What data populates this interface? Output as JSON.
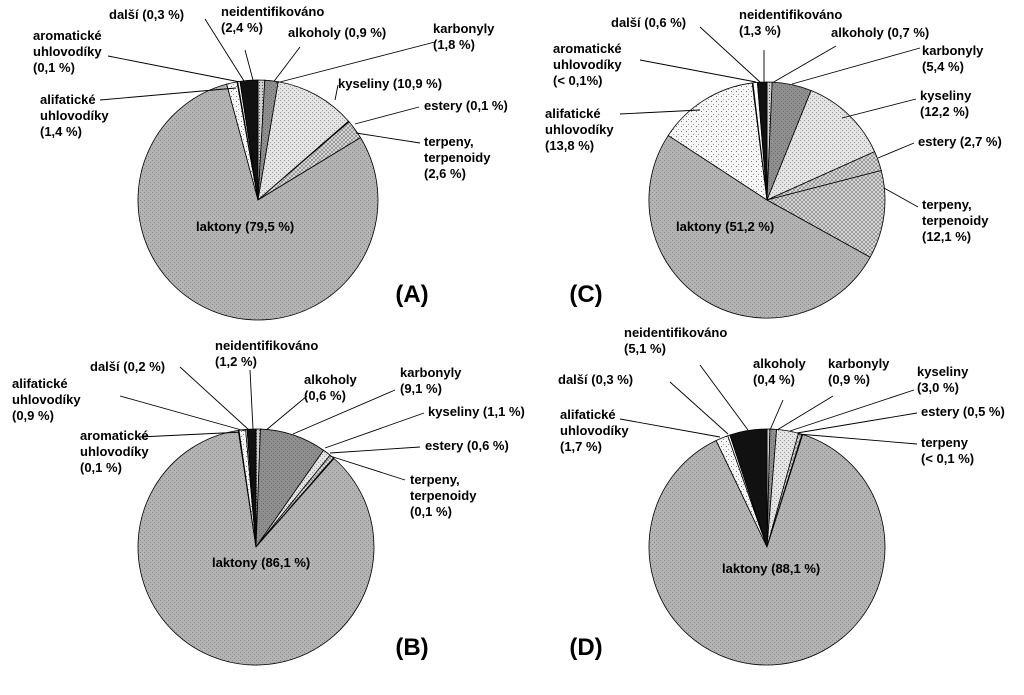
{
  "chart_data": [
    {
      "type": "pie",
      "panel": "(A)",
      "slices": [
        {
          "name": "alkoholy",
          "value": 0.9,
          "label": [
            "alkoholy (0,9 %)"
          ],
          "fill": "dots"
        },
        {
          "name": "karbonyly",
          "value": 1.8,
          "label": [
            "karbonyly",
            "(1,8 %)"
          ],
          "fill": "gray"
        },
        {
          "name": "kyseliny",
          "value": 10.9,
          "label": [
            "kyseliny (10,9 %)"
          ],
          "fill": "light"
        },
        {
          "name": "estery",
          "value": 0.1,
          "label": [
            "estery (0,1 %)"
          ],
          "fill": "cross"
        },
        {
          "name": "terpeny, terpenoidy",
          "value": 2.6,
          "label": [
            "terpeny,",
            "terpenoidy",
            "(2,6 %)"
          ],
          "fill": "cross"
        },
        {
          "name": "laktony",
          "value": 79.5,
          "label": [
            "laktony (79,5 %)"
          ],
          "fill": "lakton"
        },
        {
          "name": "alifatické uhlovodíky",
          "value": 1.4,
          "label": [
            "alifatické",
            "uhlovodíky",
            "(1,4 %)"
          ],
          "fill": "sparse"
        },
        {
          "name": "aromatické uhlovodíky",
          "value": 0.1,
          "label": [
            "aromatické",
            "uhlovodíky",
            "(0,1 %)"
          ],
          "fill": "gray"
        },
        {
          "name": "další",
          "value": 0.3,
          "label": [
            "další (0,3 %)"
          ],
          "fill": "white"
        },
        {
          "name": "neidentifikováno",
          "value": 2.4,
          "label": [
            "neidentifikováno",
            "(2,4 %)"
          ],
          "fill": "black"
        }
      ]
    },
    {
      "type": "pie",
      "panel": "(B)",
      "slices": [
        {
          "name": "alkoholy",
          "value": 0.6,
          "label": [
            "alkoholy",
            "(0,6 %)"
          ],
          "fill": "dots"
        },
        {
          "name": "karbonyly",
          "value": 9.1,
          "label": [
            "karbonyly",
            "(9,1 %)"
          ],
          "fill": "gray"
        },
        {
          "name": "kyseliny",
          "value": 1.1,
          "label": [
            "kyseliny (1,1 %)"
          ],
          "fill": "light"
        },
        {
          "name": "estery",
          "value": 0.6,
          "label": [
            "estery (0,6 %)"
          ],
          "fill": "cross"
        },
        {
          "name": "terpeny, terpenoidy",
          "value": 0.1,
          "label": [
            "terpeny,",
            "terpenoidy",
            "(0,1 %)"
          ],
          "fill": "cross"
        },
        {
          "name": "laktony",
          "value": 86.1,
          "label": [
            "laktony (86,1 %)"
          ],
          "fill": "lakton"
        },
        {
          "name": "aromatické uhlovodíky",
          "value": 0.1,
          "label": [
            "aromatické",
            "uhlovodíky",
            "(0,1 %)"
          ],
          "fill": "gray"
        },
        {
          "name": "alifatické uhlovodíky",
          "value": 0.9,
          "label": [
            "alifatické",
            "uhlovodíky",
            "(0,9 %)"
          ],
          "fill": "sparse"
        },
        {
          "name": "další",
          "value": 0.2,
          "label": [
            "další (0,2 %)"
          ],
          "fill": "white"
        },
        {
          "name": "neidentifikováno",
          "value": 1.2,
          "label": [
            "neidentifikováno",
            "(1,2 %)"
          ],
          "fill": "black"
        }
      ]
    },
    {
      "type": "pie",
      "panel": "(C)",
      "slices": [
        {
          "name": "alkoholy",
          "value": 0.7,
          "label": [
            "alkoholy (0,7 %)"
          ],
          "fill": "dots"
        },
        {
          "name": "karbonyly",
          "value": 5.4,
          "label": [
            "karbonyly",
            "(5,4 %)"
          ],
          "fill": "gray"
        },
        {
          "name": "kyseliny",
          "value": 12.2,
          "label": [
            "kyseliny",
            "(12,2 %)"
          ],
          "fill": "light"
        },
        {
          "name": "estery",
          "value": 2.7,
          "label": [
            "estery (2,7 %)"
          ],
          "fill": "cross"
        },
        {
          "name": "terpeny, terpenoidy",
          "value": 12.1,
          "label": [
            "terpeny,",
            "terpenoidy",
            "(12,1 %)"
          ],
          "fill": "cross"
        },
        {
          "name": "laktony",
          "value": 51.2,
          "label": [
            "laktony (51,2 %)"
          ],
          "fill": "lakton"
        },
        {
          "name": "alifatické uhlovodíky",
          "value": 13.8,
          "label": [
            "alifatické",
            "uhlovodíky",
            "(13,8 %)"
          ],
          "fill": "sparse"
        },
        {
          "name": "aromatické uhlovodíky",
          "value": 0.1,
          "label": [
            "aromatické",
            "uhlovodíky",
            "(< 0,1%)"
          ],
          "fill": "gray"
        },
        {
          "name": "další",
          "value": 0.6,
          "label": [
            "další (0,6 %)"
          ],
          "fill": "white"
        },
        {
          "name": "neidentifikováno",
          "value": 1.3,
          "label": [
            "neidentifikováno",
            "(1,3 %)"
          ],
          "fill": "black"
        }
      ]
    },
    {
      "type": "pie",
      "panel": "(D)",
      "slices": [
        {
          "name": "alkoholy",
          "value": 0.4,
          "label": [
            "alkoholy",
            "(0,4 %)"
          ],
          "fill": "dots"
        },
        {
          "name": "karbonyly",
          "value": 0.9,
          "label": [
            "karbonyly",
            "(0,9 %)"
          ],
          "fill": "gray"
        },
        {
          "name": "kyseliny",
          "value": 3.0,
          "label": [
            "kyseliny",
            "(3,0 %)"
          ],
          "fill": "light"
        },
        {
          "name": "estery",
          "value": 0.5,
          "label": [
            "estery (0,5 %)"
          ],
          "fill": "cross"
        },
        {
          "name": "terpeny",
          "value": 0.1,
          "label": [
            "terpeny",
            "(< 0,1 %)"
          ],
          "fill": "cross"
        },
        {
          "name": "laktony",
          "value": 88.1,
          "label": [
            "laktony (88,1 %)"
          ],
          "fill": "lakton"
        },
        {
          "name": "alifatické uhlovodíky",
          "value": 1.7,
          "label": [
            "alifatické",
            "uhlovodíky",
            "(1,7 %)"
          ],
          "fill": "sparse"
        },
        {
          "name": "další",
          "value": 0.3,
          "label": [
            "další (0,3 %)"
          ],
          "fill": "white"
        },
        {
          "name": "neidentifikováno",
          "value": 5.1,
          "label": [
            "neidentifikováno",
            "(5,1 %)"
          ],
          "fill": "black"
        }
      ]
    }
  ]
}
